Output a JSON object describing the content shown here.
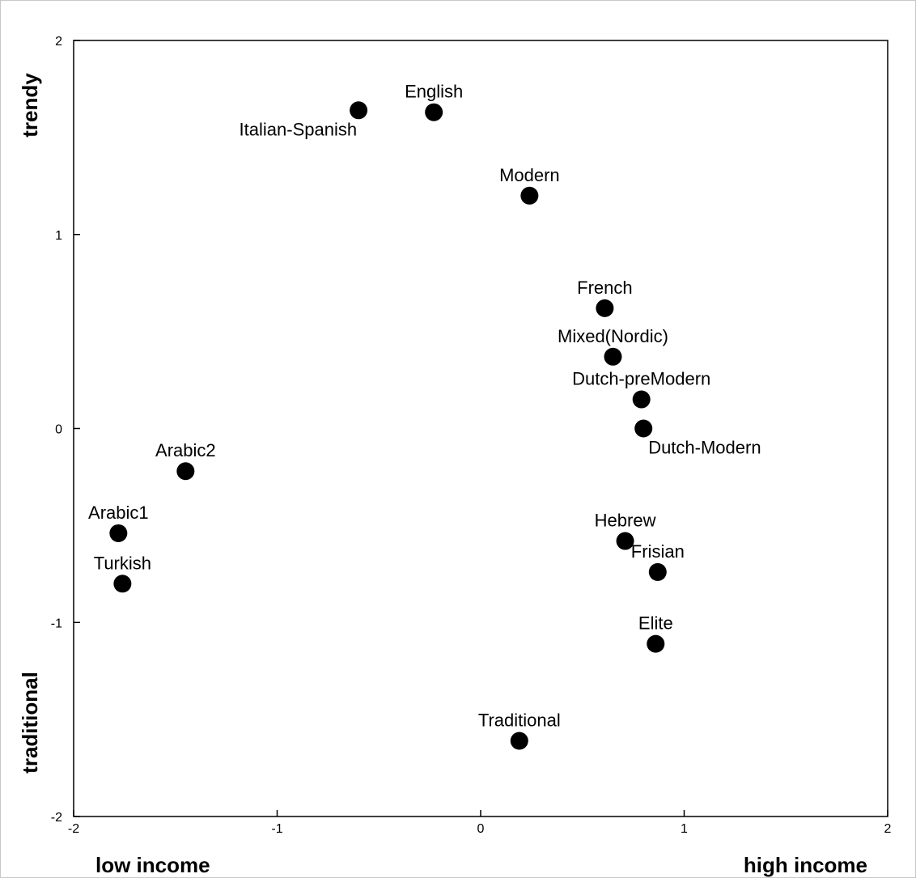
{
  "chart_data": {
    "type": "scatter",
    "xlim": [
      -2,
      2
    ],
    "ylim": [
      -2,
      2
    ],
    "x_ticks": [
      -2,
      -1,
      0,
      1,
      2
    ],
    "y_ticks": [
      -2,
      -1,
      0,
      1,
      2
    ],
    "x_tick_labels": [
      "-2",
      "-1",
      "0",
      "1",
      "2"
    ],
    "y_tick_labels": [
      "-2",
      "-1",
      "0",
      "1",
      "2"
    ],
    "grid": false,
    "marker_color": "#000000",
    "axis_labels": {
      "x_low": "low income",
      "x_high": "high income",
      "y_high": "trendy",
      "y_low": "traditional"
    },
    "points": [
      {
        "label": "English",
        "x": -0.23,
        "y": 1.63,
        "label_pos": "above"
      },
      {
        "label": "Italian-Spanish",
        "x": -0.6,
        "y": 1.64,
        "label_pos": "below-left"
      },
      {
        "label": "Modern",
        "x": 0.24,
        "y": 1.2,
        "label_pos": "above"
      },
      {
        "label": "French",
        "x": 0.61,
        "y": 0.62,
        "label_pos": "above"
      },
      {
        "label": "Mixed(Nordic)",
        "x": 0.65,
        "y": 0.37,
        "label_pos": "above"
      },
      {
        "label": "Dutch-preModern",
        "x": 0.79,
        "y": 0.15,
        "label_pos": "above"
      },
      {
        "label": "Dutch-Modern",
        "x": 0.8,
        "y": 0.0,
        "label_pos": "below-right"
      },
      {
        "label": "Arabic2",
        "x": -1.45,
        "y": -0.22,
        "label_pos": "above"
      },
      {
        "label": "Arabic1",
        "x": -1.78,
        "y": -0.54,
        "label_pos": "above"
      },
      {
        "label": "Turkish",
        "x": -1.76,
        "y": -0.8,
        "label_pos": "above"
      },
      {
        "label": "Hebrew",
        "x": 0.71,
        "y": -0.58,
        "label_pos": "above"
      },
      {
        "label": "Frisian",
        "x": 0.87,
        "y": -0.74,
        "label_pos": "above"
      },
      {
        "label": "Elite",
        "x": 0.86,
        "y": -1.11,
        "label_pos": "above"
      },
      {
        "label": "Traditional",
        "x": 0.19,
        "y": -1.61,
        "label_pos": "above"
      }
    ]
  }
}
